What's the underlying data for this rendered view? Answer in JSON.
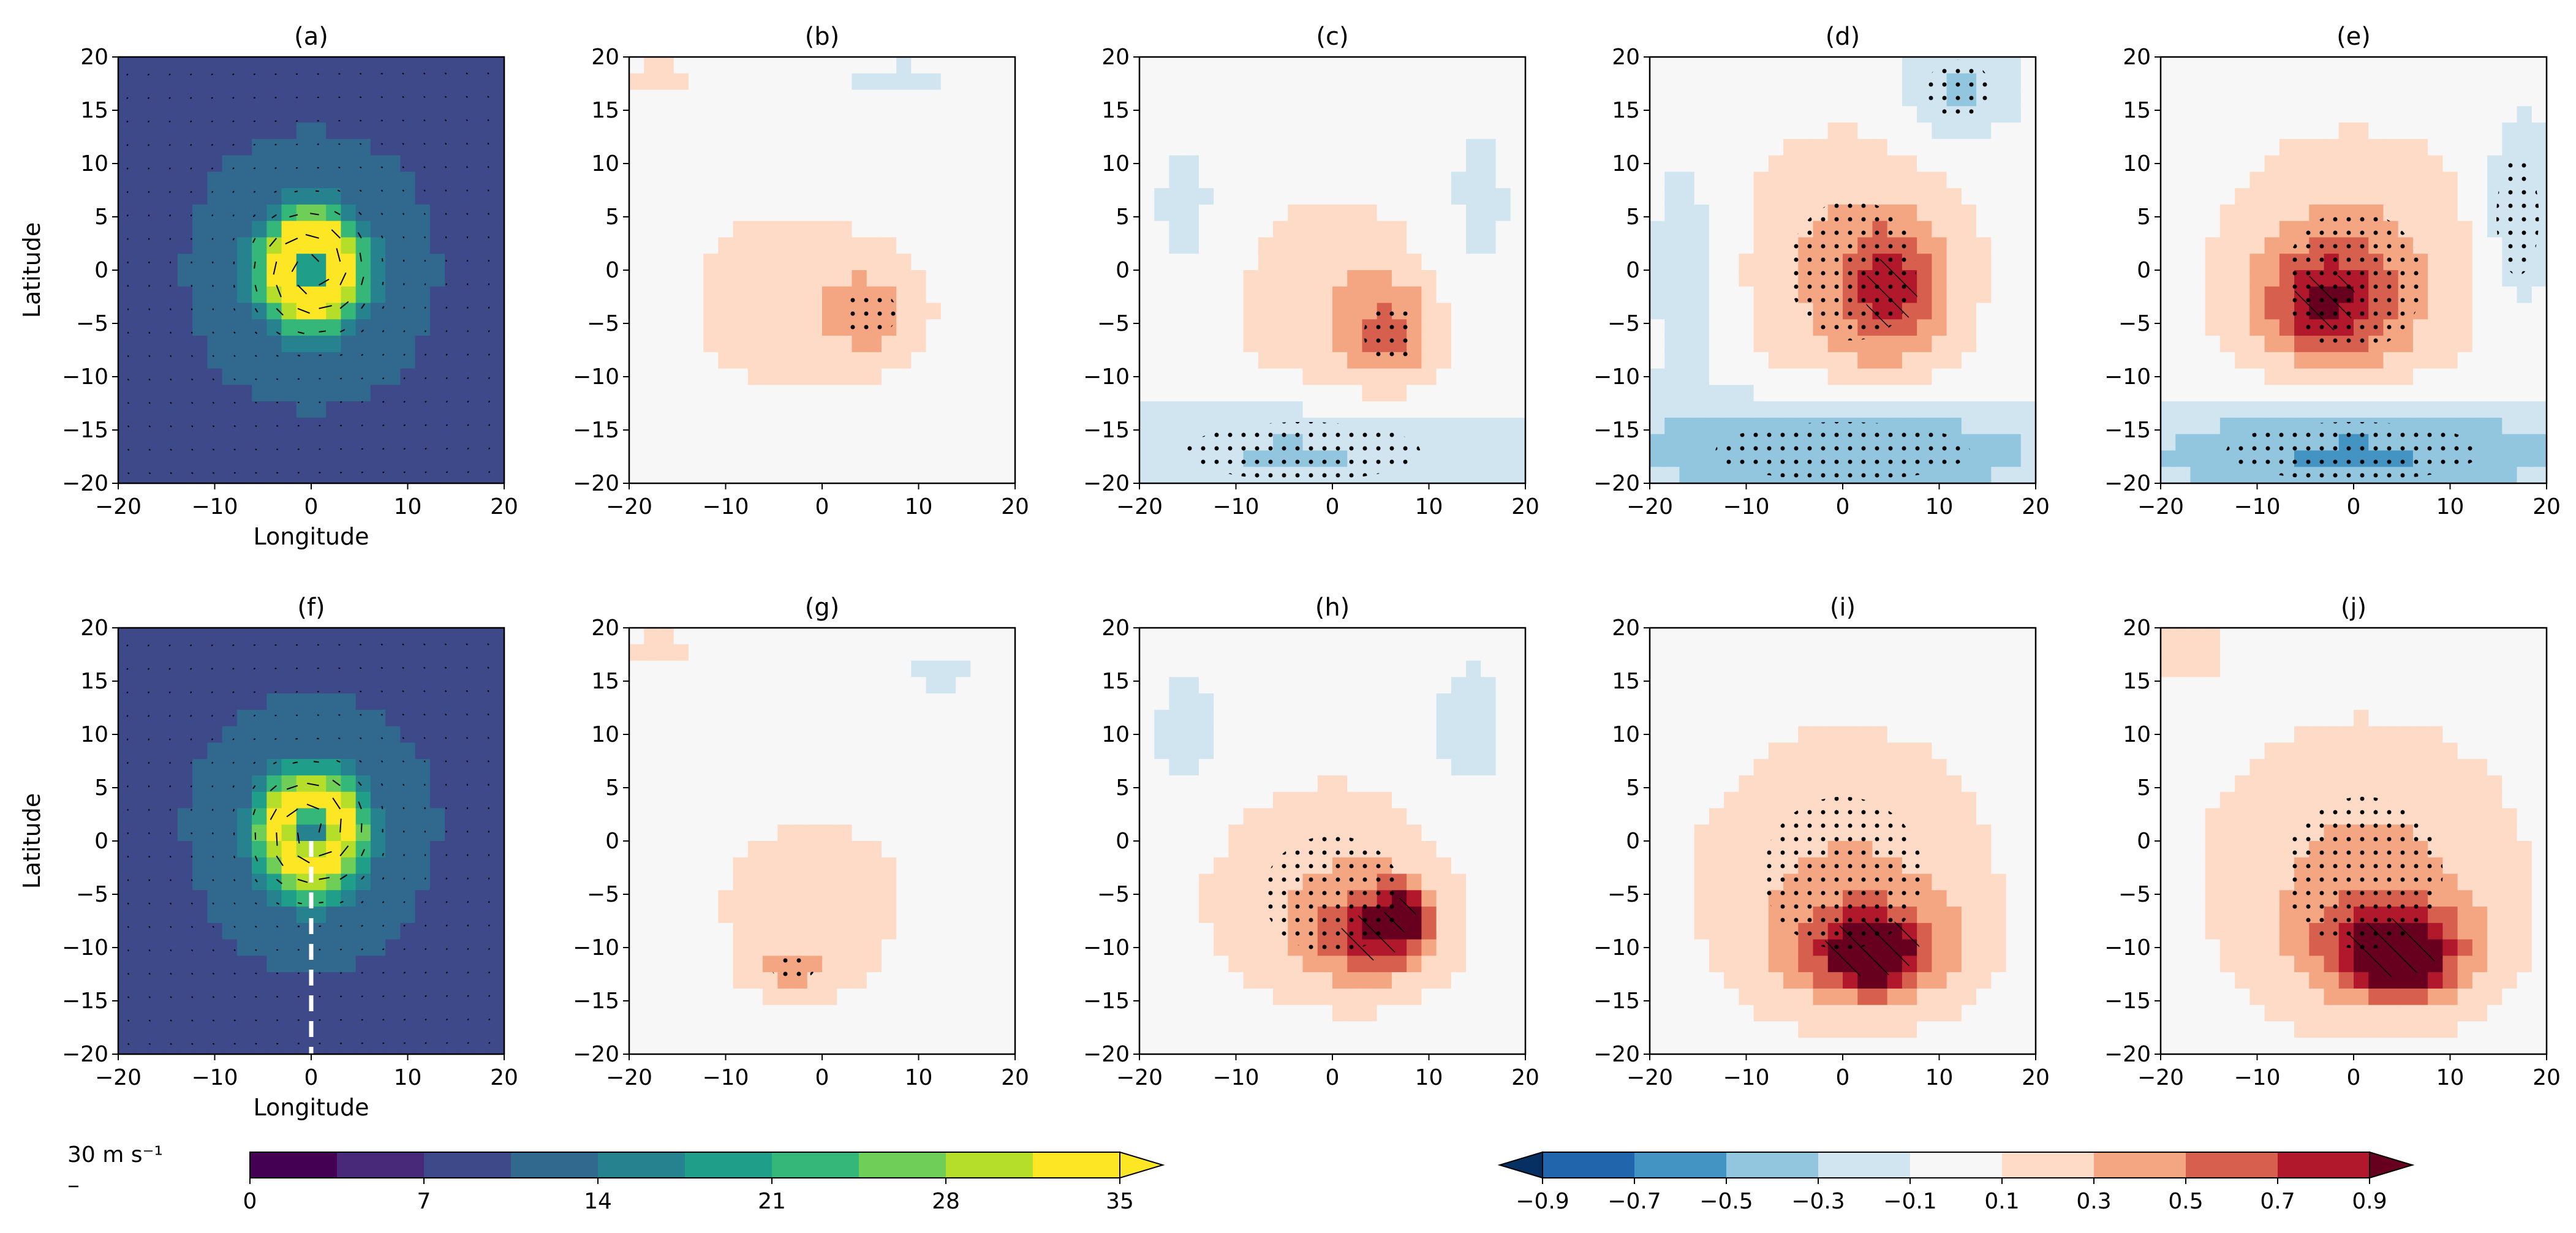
{
  "chart_data": {
    "type": "heatmap",
    "grid": false,
    "panels": [
      {
        "label": "(a)",
        "kind": "wind",
        "xlabel": "Longitude",
        "ylabel": "Latitude",
        "xlim": [
          -20,
          20
        ],
        "ylim": [
          -20,
          20
        ],
        "xticks": [
          "−20",
          "−10",
          "0",
          "10",
          "20"
        ],
        "yticks": [
          "20",
          "15",
          "10",
          "5",
          "0",
          "−5",
          "−10",
          "−15",
          "−20"
        ],
        "vortex_center": [
          0,
          0
        ],
        "max_wind_location": [
          0,
          3
        ],
        "max_wind": 34
      },
      {
        "label": "(b)",
        "kind": "anomaly",
        "xlim": [
          -20,
          20
        ],
        "ylim": [
          -20,
          20
        ],
        "xticks": [
          "−20",
          "−10",
          "0",
          "10",
          "20"
        ],
        "yticks": [
          "20",
          "15",
          "10",
          "5",
          "0",
          "−5",
          "−10",
          "−15",
          "−20"
        ],
        "blobs": [
          [
            -3,
            -3,
            12,
            10,
            0.2
          ],
          [
            5,
            -4,
            5,
            4,
            0.35
          ],
          [
            -17,
            18,
            4,
            3,
            0.15
          ],
          [
            -2,
            -18,
            20,
            3,
            -0.12
          ],
          [
            8,
            18,
            12,
            3,
            -0.12
          ]
        ]
      },
      {
        "label": "(c)",
        "kind": "anomaly",
        "xlim": [
          -20,
          20
        ],
        "ylim": [
          -20,
          20
        ],
        "xticks": [
          "−20",
          "−10",
          "0",
          "10",
          "20"
        ],
        "yticks": [
          "20",
          "15",
          "10",
          "5",
          "0",
          "−5",
          "−10",
          "−15",
          "−20"
        ],
        "blobs": [
          [
            0,
            -3,
            11,
            10,
            0.25
          ],
          [
            6,
            -6,
            5,
            5,
            0.4
          ],
          [
            -3,
            -17,
            22,
            5,
            -0.35
          ],
          [
            -15,
            5,
            5,
            10,
            -0.15
          ],
          [
            15,
            5,
            5,
            12,
            -0.15
          ]
        ]
      },
      {
        "label": "(d)",
        "kind": "anomaly",
        "xlim": [
          -20,
          20
        ],
        "ylim": [
          -20,
          20
        ],
        "xticks": [
          "−20",
          "−10",
          "0",
          "10",
          "20"
        ],
        "yticks": [
          "20",
          "15",
          "10",
          "5",
          "0",
          "−5",
          "−10",
          "−15",
          "−20"
        ],
        "blobs": [
          [
            1,
            0,
            12,
            12,
            0.35
          ],
          [
            5,
            -2,
            5,
            6,
            0.55
          ],
          [
            0,
            -17,
            24,
            5,
            -0.55
          ],
          [
            12,
            17,
            6,
            5,
            -0.35
          ],
          [
            -16,
            0,
            5,
            14,
            -0.2
          ]
        ]
      },
      {
        "label": "(e)",
        "kind": "anomaly",
        "xlim": [
          -20,
          20
        ],
        "ylim": [
          -20,
          20
        ],
        "xticks": [
          "−20",
          "−10",
          "0",
          "10",
          "20"
        ],
        "yticks": [
          "20",
          "15",
          "10",
          "5",
          "0",
          "−5",
          "−10",
          "−15",
          "−20"
        ],
        "blobs": [
          [
            0,
            -1,
            13,
            12,
            0.4
          ],
          [
            -3,
            -3,
            6,
            5,
            0.6
          ],
          [
            0,
            -17,
            24,
            5,
            -0.6
          ],
          [
            17,
            5,
            4,
            10,
            -0.3
          ]
        ]
      },
      {
        "label": "(f)",
        "kind": "wind",
        "xlabel": "Longitude",
        "ylabel": "Latitude",
        "xlim": [
          -20,
          20
        ],
        "ylim": [
          -20,
          20
        ],
        "xticks": [
          "−20",
          "−10",
          "0",
          "10",
          "20"
        ],
        "yticks": [
          "20",
          "15",
          "10",
          "5",
          "0",
          "−5",
          "−10",
          "−15",
          "−20"
        ],
        "vortex_center": [
          0,
          1
        ],
        "max_wind_location": [
          0,
          -5
        ],
        "max_wind": 33,
        "dashed_line": {
          "x": [
            0,
            0
          ],
          "y": [
            0,
            -20
          ]
        }
      },
      {
        "label": "(g)",
        "kind": "anomaly",
        "xlim": [
          -20,
          20
        ],
        "ylim": [
          -20,
          20
        ],
        "xticks": [
          "−20",
          "−10",
          "0",
          "10",
          "20"
        ],
        "yticks": [
          "20",
          "15",
          "10",
          "5",
          "0",
          "−5",
          "−10",
          "−15",
          "−20"
        ],
        "blobs": [
          [
            -1,
            -6,
            11,
            9,
            0.2
          ],
          [
            -3,
            -12,
            4,
            2,
            0.35
          ],
          [
            -17,
            18,
            4,
            3,
            0.15
          ],
          [
            12,
            16,
            8,
            4,
            -0.12
          ]
        ]
      },
      {
        "label": "(h)",
        "kind": "anomaly",
        "xlim": [
          -20,
          20
        ],
        "ylim": [
          -20,
          20
        ],
        "xticks": [
          "−20",
          "−10",
          "0",
          "10",
          "20"
        ],
        "yticks": [
          "20",
          "15",
          "10",
          "5",
          "0",
          "−5",
          "−10",
          "−15",
          "−20"
        ],
        "blobs": [
          [
            0,
            -5,
            13,
            10,
            0.3
          ],
          [
            4,
            -9,
            6,
            4,
            0.55
          ],
          [
            7,
            -7,
            3,
            3,
            0.7
          ],
          [
            -15,
            10,
            5,
            8,
            -0.15
          ],
          [
            14,
            10,
            6,
            10,
            -0.15
          ]
        ]
      },
      {
        "label": "(i)",
        "kind": "anomaly",
        "xlim": [
          -20,
          20
        ],
        "ylim": [
          -20,
          20
        ],
        "xticks": [
          "−20",
          "−10",
          "0",
          "10",
          "20"
        ],
        "yticks": [
          "20",
          "15",
          "10",
          "5",
          "0",
          "−5",
          "−10",
          "−15",
          "−20"
        ],
        "blobs": [
          [
            0,
            -3,
            15,
            13,
            0.3
          ],
          [
            3,
            -10,
            9,
            5,
            0.55
          ],
          [
            3,
            -11,
            4,
            3,
            0.8
          ],
          [
            -15,
            12,
            5,
            6,
            -0.12
          ]
        ]
      },
      {
        "label": "(j)",
        "kind": "anomaly",
        "xlim": [
          -20,
          20
        ],
        "ylim": [
          -20,
          20
        ],
        "xticks": [
          "−20",
          "−10",
          "0",
          "10",
          "20"
        ],
        "yticks": [
          "20",
          "15",
          "10",
          "5",
          "0",
          "−5",
          "−10",
          "−15",
          "−20"
        ],
        "blobs": [
          [
            1,
            -3,
            15,
            13,
            0.35
          ],
          [
            4,
            -10,
            9,
            5,
            0.6
          ],
          [
            5,
            -11,
            4,
            3,
            0.9
          ],
          [
            -17,
            18,
            4,
            3,
            0.2
          ]
        ]
      }
    ],
    "colorbars": [
      {
        "name": "wind",
        "colormap": "viridis",
        "levels": [
          0,
          3.5,
          7,
          10.5,
          14,
          17.5,
          21,
          24.5,
          28,
          31.5,
          35
        ],
        "ticks": [
          "0",
          "7",
          "14",
          "21",
          "28",
          "35"
        ],
        "extend": "max",
        "vector_key": "30 m s⁻¹"
      },
      {
        "name": "anomaly",
        "colormap": "RdBu_r",
        "levels": [
          -0.9,
          -0.7,
          -0.5,
          -0.3,
          -0.1,
          0.1,
          0.3,
          0.5,
          0.7,
          0.9
        ],
        "ticks": [
          "−0.9",
          "−0.7",
          "−0.5",
          "−0.3",
          "−0.1",
          "0.1",
          "0.3",
          "0.5",
          "0.7",
          "0.9"
        ],
        "extend": "both",
        "colors": [
          "#053061",
          "#2166ac",
          "#4393c3",
          "#92c5de",
          "#d1e5f0",
          "#f7f7f7",
          "#fddbc7",
          "#f4a582",
          "#d6604d",
          "#b2182b",
          "#67001f"
        ]
      }
    ]
  }
}
